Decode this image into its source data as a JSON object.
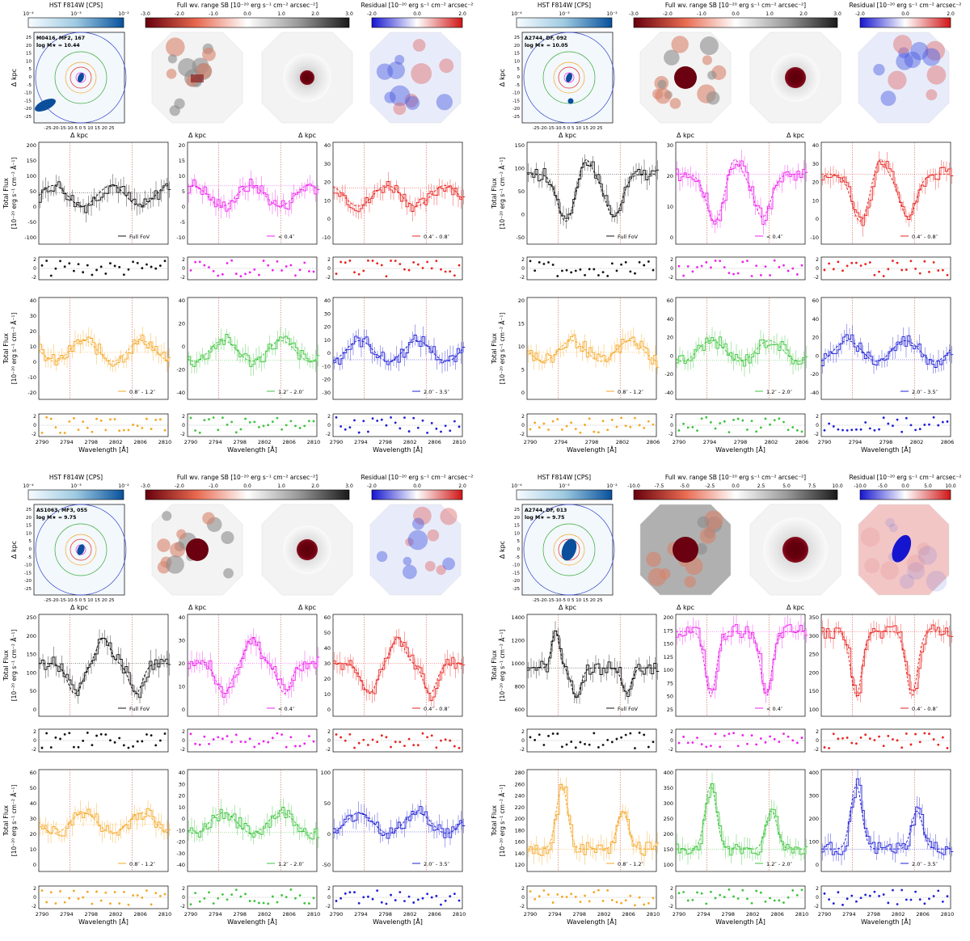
{
  "labels": {
    "hst": "HST F814W [CPS]",
    "full_sb": "Full wv. range SB [10⁻²⁰ erg s⁻¹ cm⁻² arcsec⁻²]",
    "residual": "Residual [10⁻²⁰ erg s⁻¹ cm⁻² arcsec⁻²",
    "dkpc": "Δ kpc",
    "flux_line1": "Total Flux",
    "flux_line2": "[10⁻²⁰ erg s⁻¹ cm⁻² Å⁻¹]",
    "wavelength": "Wavelength [Å]"
  },
  "hst_ticks": [
    "10⁻⁴",
    "10⁻³",
    "10⁻²"
  ],
  "kpc_ticks": [
    "25",
    "20",
    "15",
    "10",
    "5",
    "0",
    "-5",
    "-10",
    "-15",
    "-20",
    "-25"
  ],
  "kpc_xticks": "-25-20-15-10-5  0  5 10 15 20 25",
  "bins": [
    "Full FoV",
    "< 0.4″",
    "0.4″ - 0.8″",
    "0.8″ - 1.2″",
    "1.2″ - 2.0″",
    "2.0″ - 3.5″"
  ],
  "colors": {
    "full": "#111111",
    "b1": "#ee22ee",
    "b2": "#e8231f",
    "b3": "#f5a623",
    "b4": "#3cc43c",
    "b5": "#1f1fd6"
  },
  "galaxies": [
    {
      "name": "M0416, MF2, 167",
      "mass": "log M★ = 10.44",
      "sb_ticks": [
        "-3.0",
        "-2.0",
        "-1.0",
        "0.0",
        "1.0",
        "2.0",
        "3.0"
      ],
      "res_ticks": [
        "-2.0",
        "0.0",
        "2.0"
      ],
      "panels": [
        {
          "yticks": [
            "200",
            "150",
            "100",
            "50",
            "0",
            "-50",
            "-100"
          ],
          "xticks": [
            "2790",
            "2794",
            "2798",
            "2802",
            "2806",
            "2810"
          ]
        },
        {
          "yticks": [
            "20",
            "15",
            "10",
            "5",
            "0",
            "-5",
            "-10"
          ],
          "xticks": [
            "2790",
            "2794",
            "2798",
            "2802",
            "2806",
            "2810"
          ]
        },
        {
          "yticks": [
            "40",
            "30",
            "20",
            "10",
            "0",
            "-10"
          ],
          "xticks": [
            "2790",
            "2794",
            "2798",
            "2802",
            "2806",
            "2810"
          ]
        },
        {
          "yticks": [
            "40",
            "30",
            "20",
            "10",
            "0",
            "-10",
            "-20"
          ],
          "xticks": [
            "2790",
            "2794",
            "2798",
            "2802",
            "2806",
            "2810"
          ]
        },
        {
          "yticks": [
            "40",
            "20",
            "0",
            "-20",
            "-40"
          ],
          "xticks": [
            "2790",
            "2794",
            "2798",
            "2802",
            "2806",
            "2810"
          ]
        },
        {
          "yticks": [
            "40",
            "30",
            "20",
            "10",
            "0",
            "-10",
            "-20",
            "-30"
          ],
          "xticks": [
            "2790",
            "2794",
            "2798",
            "2802",
            "2806",
            "2810"
          ]
        }
      ]
    },
    {
      "name": "A2744, DF, 092",
      "mass": "log M★ = 10.05",
      "sb_ticks": [
        "-3.0",
        "-2.0",
        "-1.0",
        "0.0",
        "1.0",
        "2.0",
        "3.0"
      ],
      "res_ticks": [
        "-2.0",
        "0.0",
        "2.0"
      ],
      "panels": [
        {
          "yticks": [
            "150",
            "100",
            "50",
            "0",
            "-50"
          ],
          "xticks": [
            "2790",
            "2794",
            "2798",
            "2802",
            "2806"
          ]
        },
        {
          "yticks": [
            "30",
            "20",
            "10",
            "0"
          ],
          "xticks": [
            "2790",
            "2794",
            "2798",
            "2802",
            "2806"
          ]
        },
        {
          "yticks": [
            "40",
            "30",
            "20",
            "10",
            "0",
            "-10"
          ],
          "xticks": [
            "2790",
            "2794",
            "2798",
            "2802",
            "2806"
          ]
        },
        {
          "yticks": [
            "20",
            "15",
            "10",
            "5",
            "0"
          ],
          "xticks": [
            "2790",
            "2794",
            "2798",
            "2802",
            "2806"
          ]
        },
        {
          "yticks": [
            "60",
            "40",
            "20",
            "0",
            "-20",
            "-40"
          ],
          "xticks": [
            "2790",
            "2794",
            "2798",
            "2802",
            "2806"
          ]
        },
        {
          "yticks": [
            "60",
            "40",
            "20",
            "0",
            "-20",
            "-40"
          ],
          "xticks": [
            "2790",
            "2794",
            "2798",
            "2802",
            "2806"
          ]
        }
      ]
    },
    {
      "name": "AS1063, MF3, 055",
      "mass": "log M★ = 9.75",
      "sb_ticks": [
        "-3.0",
        "-2.0",
        "-1.0",
        "0.0",
        "1.0",
        "2.0",
        "3.0"
      ],
      "res_ticks": [
        "-2.0",
        "0.0",
        "2.0"
      ],
      "panels": [
        {
          "yticks": [
            "250",
            "200",
            "150",
            "100",
            "50",
            "0"
          ],
          "xticks": [
            "2790",
            "2794",
            "2798",
            "2802",
            "2806",
            "2810"
          ]
        },
        {
          "yticks": [
            "40",
            "30",
            "20",
            "10",
            "0"
          ],
          "xticks": [
            "2790",
            "2794",
            "2798",
            "2802",
            "2806",
            "2810"
          ]
        },
        {
          "yticks": [
            "60",
            "50",
            "40",
            "30",
            "20",
            "10",
            "0"
          ],
          "xticks": [
            "2790",
            "2794",
            "2798",
            "2802",
            "2806",
            "2810"
          ]
        },
        {
          "yticks": [
            "60",
            "50",
            "40",
            "30",
            "20",
            "10",
            "0"
          ],
          "xticks": [
            "2790",
            "2794",
            "2798",
            "2802",
            "2806",
            "2810"
          ]
        },
        {
          "yticks": [
            "40",
            "30",
            "20",
            "10",
            "0",
            "-10",
            "-20",
            "-30",
            "-40"
          ],
          "xticks": [
            "2790",
            "2794",
            "2798",
            "2802",
            "2806",
            "2810"
          ]
        },
        {
          "yticks": [
            "100",
            "50",
            "0",
            "-50"
          ],
          "xticks": [
            "2790",
            "2794",
            "2798",
            "2802",
            "2806",
            "2810"
          ]
        }
      ]
    },
    {
      "name": "A2744, DF, 013",
      "mass": "log M★ = 9.75",
      "sb_ticks": [
        "-10.0",
        "-7.5",
        "-5.0",
        "-2.5",
        "0.0",
        "2.5",
        "5.0",
        "7.5",
        "10.0"
      ],
      "res_ticks": [
        "-10.0",
        "-5.0",
        "0.0",
        "5.0",
        "10.0"
      ],
      "panels": [
        {
          "yticks": [
            "1400",
            "1200",
            "1000",
            "800",
            "600"
          ],
          "xticks": [
            "2790",
            "2794",
            "2798",
            "2802",
            "2806",
            "2810"
          ]
        },
        {
          "yticks": [
            "200",
            "175",
            "150",
            "125",
            "100",
            "75",
            "50",
            "25"
          ],
          "xticks": [
            "2790",
            "2794",
            "2798",
            "2802",
            "2806",
            "2810"
          ]
        },
        {
          "yticks": [
            "350",
            "300",
            "250",
            "200",
            "150",
            "100"
          ],
          "xticks": [
            "2790",
            "2794",
            "2798",
            "2802",
            "2806",
            "2810"
          ]
        },
        {
          "yticks": [
            "280",
            "260",
            "240",
            "220",
            "200",
            "180",
            "160",
            "140",
            "120"
          ],
          "xticks": [
            "2790",
            "2794",
            "2798",
            "2802",
            "2806",
            "2810"
          ]
        },
        {
          "yticks": [
            "400",
            "350",
            "300",
            "250",
            "200",
            "150",
            "100"
          ],
          "xticks": [
            "2790",
            "2794",
            "2798",
            "2802",
            "2806",
            "2810"
          ]
        },
        {
          "yticks": [
            "400",
            "300",
            "200",
            "100",
            "0"
          ],
          "xticks": [
            "2790",
            "2794",
            "2798",
            "2802",
            "2806",
            "2810"
          ]
        }
      ]
    }
  ]
}
